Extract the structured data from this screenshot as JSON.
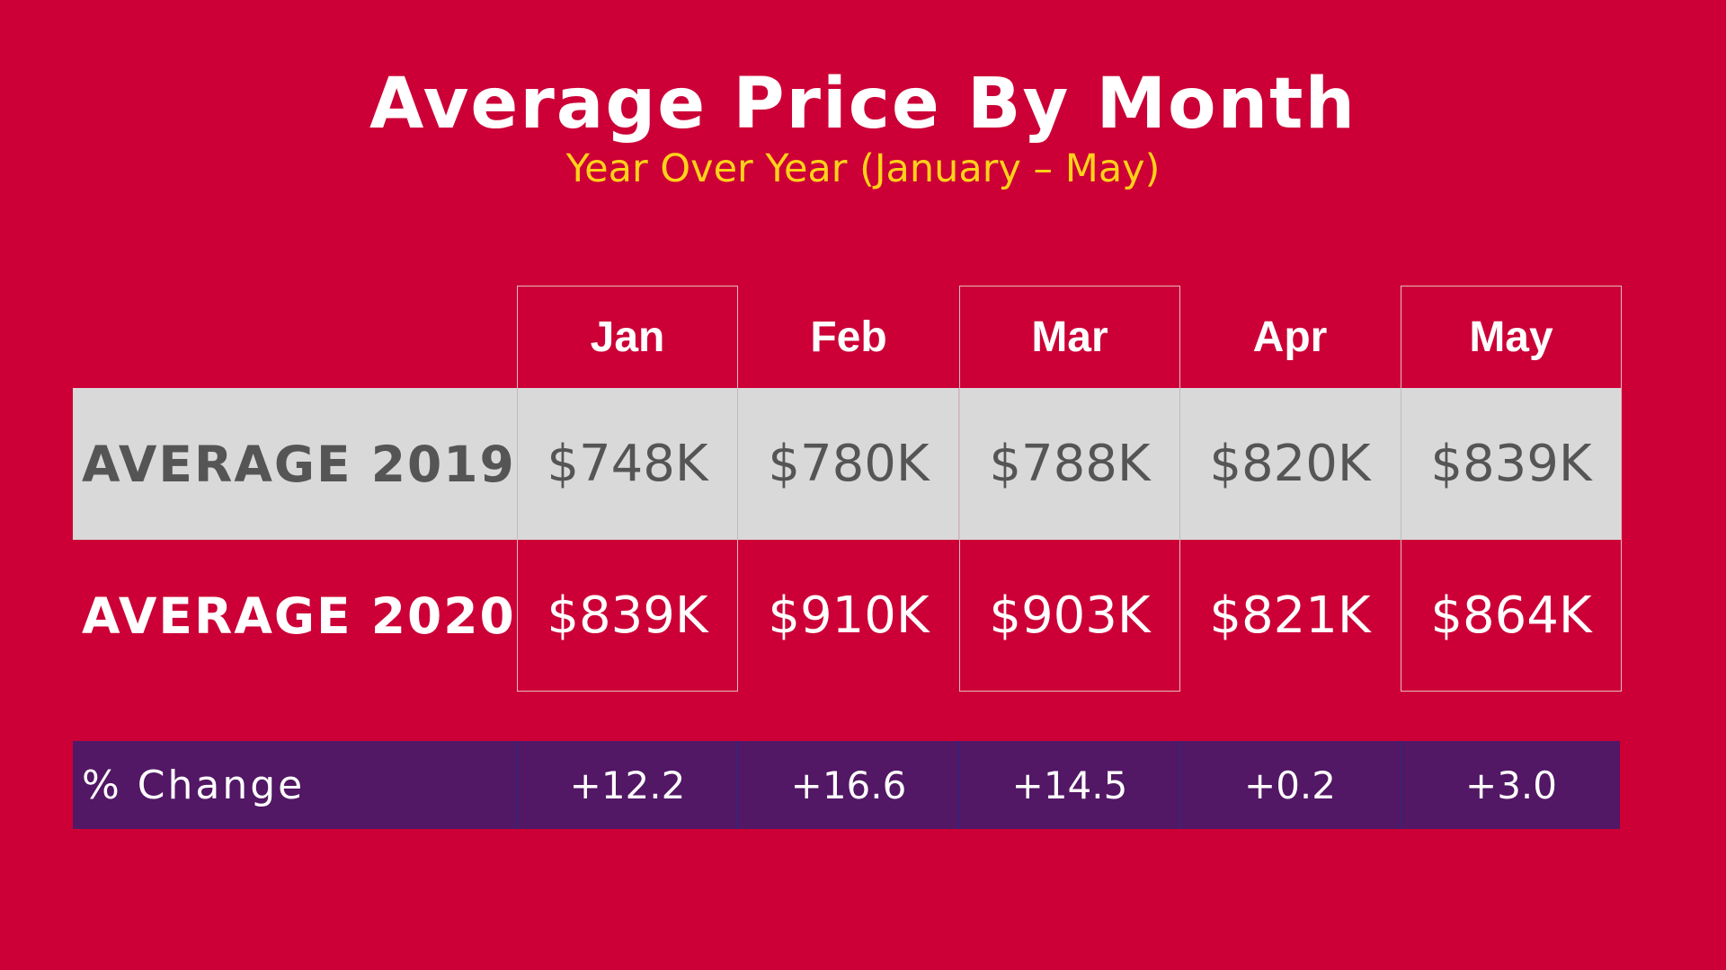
{
  "title": "Average Price By Month",
  "subtitle": "Year Over Year (January – May)",
  "colors": {
    "background": "#cc0036",
    "title": "#ffffff",
    "subtitle": "#ffd21a",
    "row_2019_band": "#d9d9d9",
    "row_2019_text": "#555555",
    "change_band": "#521765"
  },
  "table": {
    "columns": [
      "Jan",
      "Feb",
      "Mar",
      "Apr",
      "May"
    ],
    "rows": [
      {
        "label": "AVERAGE 2019",
        "values": [
          "$748K",
          "$780K",
          "$788K",
          "$820K",
          "$839K"
        ]
      },
      {
        "label": "AVERAGE 2020",
        "values": [
          "$839K",
          "$910K",
          "$903K",
          "$821K",
          "$864K"
        ]
      },
      {
        "label": "% Change",
        "values": [
          "+12.2",
          "+16.6",
          "+14.5",
          "+0.2",
          "+3.0"
        ]
      }
    ]
  },
  "chart_data": {
    "type": "table",
    "title": "Average Price By Month",
    "subtitle": "Year Over Year (January – May)",
    "categories": [
      "Jan",
      "Feb",
      "Mar",
      "Apr",
      "May"
    ],
    "series": [
      {
        "name": "AVERAGE 2019",
        "values": [
          748,
          780,
          788,
          820,
          839
        ]
      },
      {
        "name": "AVERAGE 2020",
        "values": [
          839,
          910,
          903,
          821,
          864
        ]
      },
      {
        "name": "% Change",
        "values": [
          12.2,
          16.6,
          14.5,
          0.2,
          3.0
        ]
      }
    ]
  }
}
